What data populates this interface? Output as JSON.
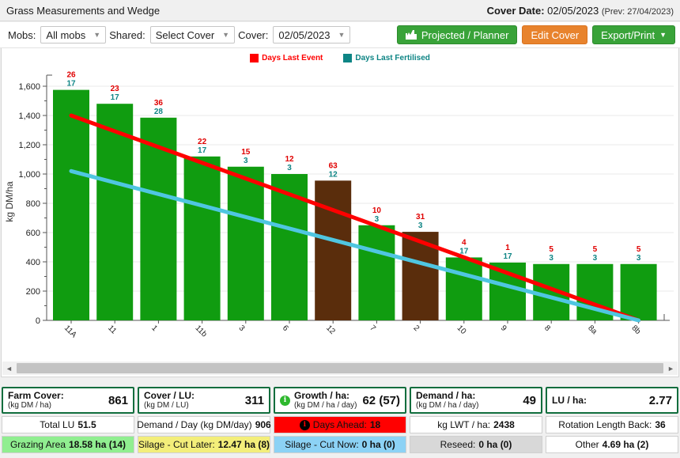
{
  "header": {
    "title": "Grass Measurements and Wedge",
    "cover_date_label": "Cover Date:",
    "cover_date_value": "02/05/2023",
    "cover_date_prev": "(Prev: 27/04/2023)"
  },
  "toolbar": {
    "mobs_label": "Mobs:",
    "mobs_value": "All mobs",
    "shared_label": "Shared:",
    "shared_value": "Select Cover",
    "cover_label": "Cover:",
    "cover_value": "02/05/2023",
    "projected_button": "Projected / Planner",
    "edit_cover_button": "Edit Cover",
    "export_button": "Export/Print"
  },
  "chart_data": {
    "type": "bar",
    "ylabel": "kg DM/ha",
    "ylim": [
      0,
      1600
    ],
    "ytick_interval": 200,
    "grid": "on",
    "legend_position": "top-center",
    "legend": [
      {
        "label": "Days Last Event",
        "color": "#ff0000"
      },
      {
        "label": "Days Last Fertilised",
        "color": "#0e8585"
      }
    ],
    "categories": [
      "11A",
      "11",
      "1",
      "11b",
      "3",
      "6",
      "12",
      "7",
      "2",
      "10",
      "9",
      "8",
      "8a",
      "8b"
    ],
    "values": [
      1575,
      1480,
      1385,
      1120,
      1050,
      1000,
      955,
      650,
      605,
      430,
      395,
      385,
      385,
      385
    ],
    "bar_types": [
      "green",
      "green",
      "green",
      "green",
      "green",
      "green",
      "brown",
      "green",
      "brown",
      "green",
      "green",
      "green",
      "green",
      "green"
    ],
    "days_last_event": [
      26,
      23,
      36,
      22,
      15,
      12,
      63,
      10,
      31,
      4,
      1,
      5,
      5,
      5
    ],
    "days_last_fertilised": [
      17,
      17,
      28,
      17,
      3,
      3,
      12,
      3,
      3,
      17,
      17,
      3,
      3,
      3
    ],
    "lines": [
      {
        "name": "demand-line",
        "color": "#ff0000",
        "start_value": 1400,
        "end_value": 0
      },
      {
        "name": "fertilised-line",
        "color": "#4fc6e1",
        "start_value": 1020,
        "end_value": 0
      }
    ],
    "colors": {
      "bar_green": "#109c10",
      "bar_brown": "#5a2d0c",
      "grid": "#e8e8e8",
      "axis": "#555555",
      "event_text": "#e00000",
      "fertilised_text": "#0e8585"
    }
  },
  "stats": {
    "columns": [
      {
        "key": "farm-cover",
        "header": {
          "label": "Farm Cover:",
          "sub": "(kg DM / ha)",
          "value": "861"
        },
        "row2": {
          "key": "total-lu",
          "label": "Total LU",
          "value": "51.5",
          "bg": "#ffffff"
        },
        "row3": {
          "key": "grazing-area",
          "label": "Grazing Area",
          "value": "18.58 ha (14)",
          "bg": "#90ee90"
        }
      },
      {
        "key": "cover-per-lu",
        "header": {
          "label": "Cover / LU:",
          "sub": "(kg DM / LU)",
          "value": "311"
        },
        "row2": {
          "key": "demand-per-day",
          "label": "Demand / Day (kg DM/day)",
          "value": "906",
          "bg": "#ffffff"
        },
        "row3": {
          "key": "silage-cut-later",
          "label": "Silage - Cut Later:",
          "value": "12.47 ha (8)",
          "bg": "#f3ee7a"
        }
      },
      {
        "key": "growth-per-ha",
        "header": {
          "label": "Growth / ha:",
          "sub": "(kg DM / ha / day)",
          "value": "62 (57)",
          "icon": "info-green"
        },
        "row2": {
          "key": "days-ahead",
          "label": "Days Ahead:",
          "value": "18",
          "bg": "#ff0000",
          "icon": "info-black"
        },
        "row3": {
          "key": "silage-cut-now",
          "label": "Silage - Cut Now:",
          "value": "0 ha (0)",
          "bg": "#8cd2f5"
        }
      },
      {
        "key": "demand-per-ha",
        "header": {
          "label": "Demand / ha:",
          "sub": "(kg DM / ha / day)",
          "value": "49"
        },
        "row2": {
          "key": "kg-lwt-per-ha",
          "label": "kg LWT / ha:",
          "value": "2438",
          "bg": "#ffffff"
        },
        "row3": {
          "key": "reseed",
          "label": "Reseed:",
          "value": "0 ha (0)",
          "bg": "#d8d8d8"
        }
      },
      {
        "key": "lu-per-ha",
        "header": {
          "label": "LU / ha:",
          "sub": "",
          "value": "2.77"
        },
        "row2": {
          "key": "rotation-length-back",
          "label": "Rotation Length Back:",
          "value": "36",
          "bg": "#ffffff"
        },
        "row3": {
          "key": "other",
          "label": "Other",
          "value": "4.69 ha (2)",
          "bg": "#ffffff"
        }
      }
    ]
  }
}
